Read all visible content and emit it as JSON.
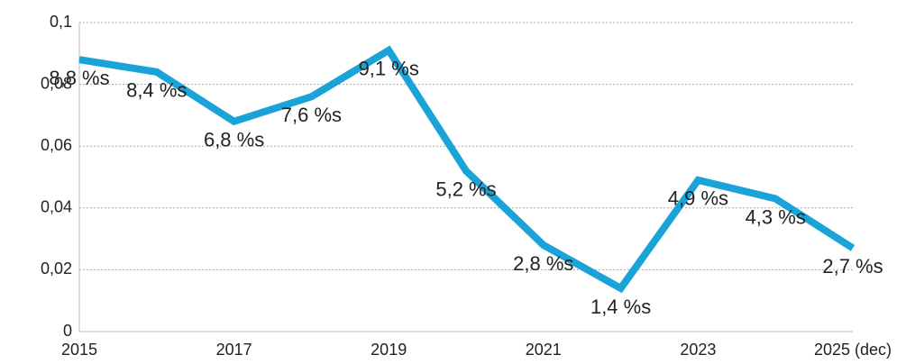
{
  "chart_data": {
    "type": "line",
    "categories": [
      "2015",
      null,
      "2017",
      null,
      "2019",
      null,
      "2021",
      null,
      "2023",
      null,
      "2025 (dec)"
    ],
    "series": [
      {
        "color": "#1aa3d8",
        "values": [
          0.088,
          0.084,
          0.068,
          0.076,
          0.091,
          0.052,
          0.028,
          0.014,
          0.049,
          0.043,
          0.027
        ],
        "value_labels": [
          "8,8 %s",
          "8,4 %s",
          "6,8 %s",
          "7,6 %s",
          "9,1 %s",
          "5,2 %s",
          "2,8 %s",
          "1,4 %s",
          "4,9 %s",
          "4,3 %s",
          "2,7 %s"
        ]
      }
    ],
    "ylim": [
      0,
      0.1
    ],
    "yticks": [
      0,
      {
        "value": 0.02,
        "label": "0,02"
      },
      {
        "value": 0.04,
        "label": "0,04"
      },
      {
        "value": 0.06,
        "label": "0,06"
      },
      {
        "value": 0.08,
        "label": "0,08"
      },
      {
        "value": 0.1,
        "label": "0,1"
      }
    ],
    "grid": true
  }
}
